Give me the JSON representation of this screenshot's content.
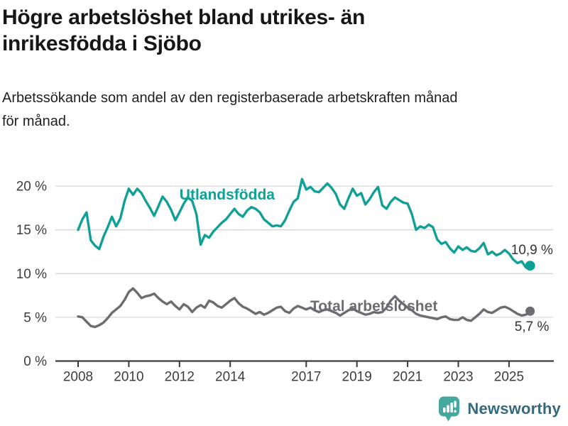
{
  "header": {
    "title_lines": [
      "Högre arbetslöshet bland utrikes- än",
      "inrikesfödda i Sjöbo"
    ],
    "subtitle_lines": [
      "Arbetssökande som andel av den registerbaserade arbetskraften månad",
      "för månad."
    ]
  },
  "chart_data": {
    "type": "line",
    "title": "Högre arbetslöshet bland utrikes- än inrikesfödda i Sjöbo",
    "subtitle": "Arbetssökande som andel av den registerbaserade arbetskraften månad för månad.",
    "unit": "%",
    "x_base": 2008,
    "x_step": 0.1666667,
    "xlim": [
      2007.1,
      2026.7
    ],
    "ylim": [
      0,
      22
    ],
    "grid": "horizontal",
    "legend_position": "inline-labels",
    "y_ticks": [
      {
        "value": 0,
        "label": "0 %"
      },
      {
        "value": 5,
        "label": "5 %"
      },
      {
        "value": 10,
        "label": "10 %"
      },
      {
        "value": 15,
        "label": "15 %"
      },
      {
        "value": 20,
        "label": "20 %"
      }
    ],
    "x_ticks": [
      {
        "value": 2008,
        "label": "2008"
      },
      {
        "value": 2010,
        "label": "2010"
      },
      {
        "value": 2012,
        "label": "2012"
      },
      {
        "value": 2014,
        "label": "2014"
      },
      {
        "value": 2017,
        "label": "2017"
      },
      {
        "value": 2019,
        "label": "2019"
      },
      {
        "value": 2021,
        "label": "2021"
      },
      {
        "value": 2023,
        "label": "2023"
      },
      {
        "value": 2025,
        "label": "2025"
      }
    ],
    "series": [
      {
        "name": "Utlandsfödda",
        "color": "#10a096",
        "line_width": 3.4,
        "end_dot_radius": 7,
        "label_pos": {
          "x": 2012.0,
          "y": 18.45
        },
        "last_value": 10.9,
        "values": [
          15.0,
          16.2,
          17.0,
          13.8,
          13.2,
          12.8,
          14.2,
          15.3,
          16.5,
          15.4,
          16.3,
          18.3,
          19.7,
          19.0,
          19.7,
          19.2,
          18.3,
          17.5,
          16.6,
          17.7,
          18.8,
          18.2,
          17.3,
          16.1,
          17.0,
          18.0,
          18.7,
          18.3,
          16.8,
          13.3,
          14.4,
          14.1,
          14.8,
          15.3,
          15.8,
          16.2,
          16.8,
          17.4,
          16.8,
          16.5,
          17.2,
          17.6,
          17.4,
          17.0,
          16.2,
          15.8,
          15.4,
          15.5,
          15.4,
          16.1,
          17.2,
          18.2,
          18.6,
          20.8,
          19.6,
          19.9,
          19.4,
          19.3,
          19.8,
          20.3,
          19.8,
          19.1,
          17.9,
          17.4,
          18.6,
          19.7,
          18.9,
          19.2,
          17.9,
          18.5,
          19.3,
          19.9,
          17.8,
          17.4,
          18.2,
          18.7,
          18.4,
          18.1,
          18.0,
          16.8,
          15.0,
          15.4,
          15.2,
          15.6,
          15.3,
          13.9,
          13.4,
          13.6,
          12.9,
          12.4,
          13.1,
          12.7,
          13.0,
          12.6,
          12.5,
          12.9,
          13.5,
          12.2,
          12.5,
          12.1,
          12.3,
          12.7,
          12.3,
          11.6,
          11.2,
          11.4,
          10.7,
          10.9
        ]
      },
      {
        "name": "Total arbetslöshet",
        "color": "#6c6c71",
        "line_width": 3.4,
        "end_dot_radius": 6.5,
        "label_pos": {
          "x": 2017.16,
          "y": 5.72
        },
        "last_value": 5.7,
        "values": [
          5.1,
          5.0,
          4.5,
          4.0,
          3.9,
          4.1,
          4.4,
          4.9,
          5.5,
          5.9,
          6.3,
          7.0,
          7.9,
          8.3,
          7.8,
          7.2,
          7.4,
          7.5,
          7.7,
          7.2,
          6.8,
          6.5,
          6.8,
          6.3,
          5.9,
          6.5,
          6.2,
          5.6,
          6.1,
          6.4,
          6.1,
          6.9,
          6.7,
          6.3,
          6.1,
          6.5,
          6.9,
          7.2,
          6.6,
          6.2,
          6.0,
          5.7,
          5.4,
          5.6,
          5.3,
          5.5,
          5.8,
          6.1,
          6.2,
          5.7,
          5.5,
          6.0,
          6.3,
          6.1,
          5.9,
          6.1,
          5.8,
          5.6,
          5.8,
          5.9,
          5.7,
          5.5,
          5.2,
          5.5,
          5.8,
          6.0,
          5.7,
          5.5,
          5.3,
          5.4,
          5.6,
          5.5,
          5.6,
          6.1,
          6.9,
          7.4,
          6.9,
          6.5,
          6.1,
          5.8,
          5.4,
          5.2,
          5.1,
          5.0,
          4.9,
          4.8,
          5.0,
          5.1,
          4.8,
          4.7,
          4.7,
          5.0,
          4.7,
          4.6,
          5.0,
          5.4,
          5.9,
          5.6,
          5.5,
          5.8,
          6.1,
          6.2,
          6.0,
          5.7,
          5.4,
          5.2,
          5.3,
          5.7
        ]
      }
    ],
    "annotations": [
      {
        "text": "10,9 %",
        "x": 2025.08,
        "y": 12.2,
        "color": "#333333"
      },
      {
        "text": "5,7 %",
        "x": 2025.22,
        "y": 3.45,
        "color": "#333333"
      }
    ],
    "colors": {
      "grid": "#d8d8d8",
      "axis": "#3a3a3a",
      "tick_label": "#3d3d3d"
    }
  },
  "footer": {
    "brand": "Newsworthy",
    "logo_icon": "bar-chart-speech-bubble-icon",
    "logo_color": "#45a89f"
  }
}
